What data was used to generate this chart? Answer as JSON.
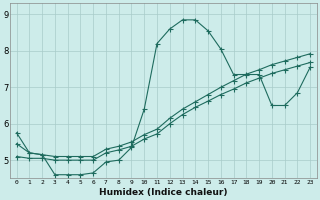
{
  "xlabel": "Humidex (Indice chaleur)",
  "bg_color": "#cdecea",
  "grid_color": "#a8ccc9",
  "line_color": "#1e6b5e",
  "xlim": [
    -0.5,
    23.5
  ],
  "ylim": [
    4.5,
    9.3
  ],
  "yticks": [
    5,
    6,
    7,
    8,
    9
  ],
  "xticks": [
    0,
    1,
    2,
    3,
    4,
    5,
    6,
    7,
    8,
    9,
    10,
    11,
    12,
    13,
    14,
    15,
    16,
    17,
    18,
    19,
    20,
    21,
    22,
    23
  ],
  "line1_x": [
    0,
    1,
    2,
    3,
    4,
    5,
    6,
    7,
    8,
    9,
    10,
    11,
    12,
    13,
    14,
    15,
    16,
    17,
    18,
    19,
    20,
    21,
    22,
    23
  ],
  "line1_y": [
    5.75,
    5.2,
    5.15,
    4.6,
    4.6,
    4.6,
    4.65,
    4.95,
    5.0,
    5.35,
    6.4,
    8.2,
    8.6,
    8.85,
    8.85,
    8.55,
    8.05,
    7.35,
    7.35,
    7.35,
    6.5,
    6.5,
    6.85,
    7.55
  ],
  "line2_x": [
    0,
    1,
    2,
    3,
    4,
    5,
    6,
    7,
    8,
    9,
    10,
    11,
    12,
    13,
    14,
    15,
    16,
    17,
    18,
    19,
    20,
    21,
    22,
    23
  ],
  "line2_y": [
    5.45,
    5.2,
    5.15,
    5.1,
    5.1,
    5.1,
    5.1,
    5.3,
    5.38,
    5.5,
    5.7,
    5.85,
    6.15,
    6.4,
    6.6,
    6.8,
    7.0,
    7.18,
    7.36,
    7.48,
    7.62,
    7.72,
    7.82,
    7.92
  ],
  "line3_x": [
    0,
    1,
    2,
    3,
    4,
    5,
    6,
    7,
    8,
    9,
    10,
    11,
    12,
    13,
    14,
    15,
    16,
    17,
    18,
    19,
    20,
    21,
    22,
    23
  ],
  "line3_y": [
    5.1,
    5.05,
    5.05,
    5.0,
    5.0,
    5.0,
    5.0,
    5.2,
    5.28,
    5.38,
    5.58,
    5.72,
    6.0,
    6.25,
    6.45,
    6.62,
    6.8,
    6.95,
    7.12,
    7.25,
    7.38,
    7.48,
    7.58,
    7.68
  ]
}
